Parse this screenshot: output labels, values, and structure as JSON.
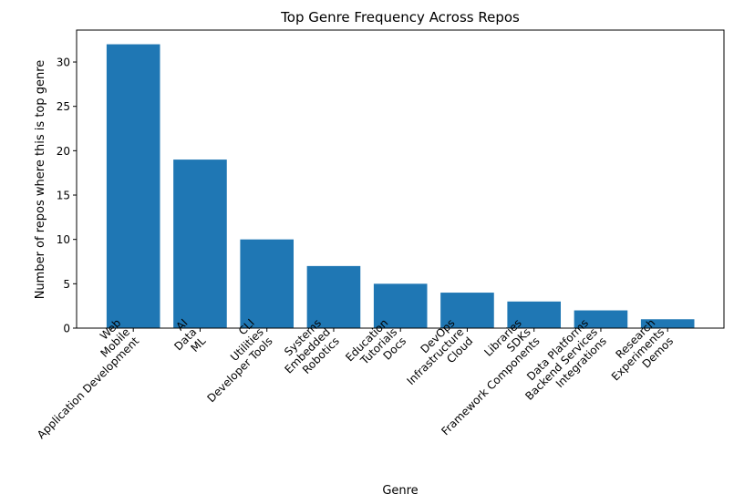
{
  "chart_data": {
    "type": "bar",
    "title": "Top Genre Frequency Across Repos",
    "xlabel": "Genre",
    "ylabel": "Number of repos where this is top genre",
    "categories": [
      [
        "Web",
        "Mobile",
        "Application Development"
      ],
      [
        "AI",
        "Data",
        "ML"
      ],
      [
        "CLI",
        "Utilities",
        "Developer Tools"
      ],
      [
        "Systems",
        "Embedded",
        "Robotics"
      ],
      [
        "Education",
        "Tutorials",
        "Docs"
      ],
      [
        "DevOps",
        "Infrastructure",
        "Cloud"
      ],
      [
        "Libraries",
        "SDKs",
        "Framework Components"
      ],
      [
        "Data Platforms",
        "Backend Services",
        "Integrations"
      ],
      [
        "Research",
        "Experiments",
        "Demos"
      ]
    ],
    "values": [
      32,
      19,
      10,
      7,
      5,
      4,
      3,
      2,
      1
    ],
    "ylim": [
      0,
      33.6
    ],
    "yticks": [
      0,
      5,
      10,
      15,
      20,
      25,
      30
    ],
    "bar_color": "#1f77b4",
    "grid": false,
    "legend": "none"
  }
}
